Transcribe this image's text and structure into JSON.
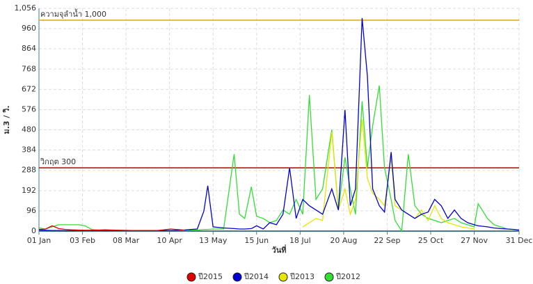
{
  "chart_data": {
    "type": "line",
    "y_label": "ม.3 / วิ.",
    "x_label": "วันที่",
    "x": [
      0,
      5,
      10,
      15,
      20,
      25,
      30,
      35,
      40,
      45,
      50,
      60,
      70,
      80,
      90,
      100,
      110,
      115,
      120,
      125,
      128,
      132,
      140,
      148,
      152,
      156,
      161,
      165,
      170,
      175,
      180,
      185,
      190,
      195,
      200,
      205,
      210,
      215,
      222,
      227,
      232,
      236,
      240,
      245,
      249,
      253,
      258,
      262,
      267,
      270,
      275,
      280,
      285,
      290,
      295,
      300,
      305,
      310,
      315,
      320,
      325,
      330,
      333,
      340,
      345,
      350,
      355,
      360,
      364
    ],
    "xlim": [
      0,
      364
    ],
    "xticks": [
      {
        "value": 0,
        "label": "01 Jan"
      },
      {
        "value": 33,
        "label": "03 Feb"
      },
      {
        "value": 66,
        "label": "08 Mar"
      },
      {
        "value": 99,
        "label": "10 Apr"
      },
      {
        "value": 132,
        "label": "13 May"
      },
      {
        "value": 165,
        "label": "15 Jun"
      },
      {
        "value": 198,
        "label": "18 Jul"
      },
      {
        "value": 231,
        "label": "20 Aug"
      },
      {
        "value": 264,
        "label": "22 Sep"
      },
      {
        "value": 297,
        "label": "25 Oct"
      },
      {
        "value": 330,
        "label": "27 Nov"
      },
      {
        "value": 364,
        "label": "31 Dec"
      }
    ],
    "ylim": [
      0,
      1056
    ],
    "yticks": [
      0,
      96,
      192,
      288,
      384,
      480,
      576,
      672,
      768,
      864,
      960,
      {
        "value": 1056,
        "label": "1,056"
      }
    ],
    "grid": true,
    "legend": "bottom",
    "reference_lines": [
      {
        "value": 1000,
        "label": "ความจุลำน้ำ 1,000",
        "color": "#e0a800"
      },
      {
        "value": 300,
        "label": "วิกฤต 300",
        "color": "#b00000"
      }
    ],
    "series": [
      {
        "name": "ปี2015",
        "color": "#e00000",
        "values": [
          8,
          10,
          25,
          12,
          8,
          6,
          5,
          4,
          4,
          5,
          6,
          4,
          3,
          3,
          3,
          10,
          5,
          null,
          null,
          null,
          null,
          null,
          null,
          null,
          null,
          null,
          null,
          null,
          null,
          null,
          null,
          null,
          null,
          null,
          null,
          null,
          null,
          null,
          null,
          null,
          null,
          null,
          null,
          null,
          null,
          null,
          null,
          null,
          null,
          null,
          null,
          null,
          null,
          null,
          null,
          null,
          null,
          null,
          null,
          null,
          null,
          null,
          null,
          null,
          null,
          null,
          null,
          null,
          null
        ]
      },
      {
        "name": "ปี2014",
        "color": "#0000d0",
        "values": [
          5,
          4,
          3,
          3,
          2,
          2,
          2,
          2,
          2,
          2,
          2,
          2,
          2,
          2,
          2,
          3,
          5,
          8,
          10,
          95,
          215,
          20,
          15,
          12,
          10,
          10,
          12,
          25,
          10,
          40,
          30,
          80,
          300,
          60,
          150,
          120,
          100,
          80,
          200,
          100,
          575,
          120,
          200,
          1010,
          735,
          200,
          120,
          90,
          375,
          150,
          100,
          80,
          60,
          80,
          90,
          150,
          120,
          60,
          100,
          60,
          40,
          30,
          25,
          20,
          15,
          12,
          10,
          8,
          5
        ]
      },
      {
        "name": "ปี2013",
        "color": "#e6e600",
        "values": [
          null,
          null,
          null,
          null,
          null,
          null,
          null,
          null,
          null,
          null,
          null,
          null,
          null,
          null,
          null,
          null,
          null,
          null,
          null,
          null,
          null,
          null,
          null,
          null,
          null,
          null,
          null,
          null,
          null,
          null,
          null,
          null,
          null,
          null,
          20,
          40,
          60,
          50,
          470,
          100,
          200,
          80,
          150,
          530,
          250,
          180,
          150,
          120,
          350,
          120,
          100,
          80,
          60,
          100,
          50,
          120,
          60,
          40,
          30,
          20,
          15,
          10,
          null,
          null,
          null,
          null,
          null,
          null,
          null
        ]
      },
      {
        "name": "ปี2012",
        "color": "#33dd33",
        "values": [
          15,
          10,
          20,
          30,
          30,
          30,
          30,
          25,
          8,
          5,
          5,
          4,
          3,
          3,
          3,
          3,
          3,
          5,
          5,
          8,
          8,
          10,
          10,
          365,
          80,
          60,
          210,
          70,
          60,
          40,
          50,
          100,
          80,
          150,
          80,
          645,
          150,
          200,
          480,
          100,
          350,
          200,
          80,
          615,
          300,
          500,
          690,
          300,
          150,
          50,
          0,
          365,
          120,
          80,
          60,
          50,
          40,
          50,
          60,
          40,
          30,
          20,
          130,
          60,
          30,
          20,
          10,
          8,
          5
        ]
      }
    ]
  }
}
